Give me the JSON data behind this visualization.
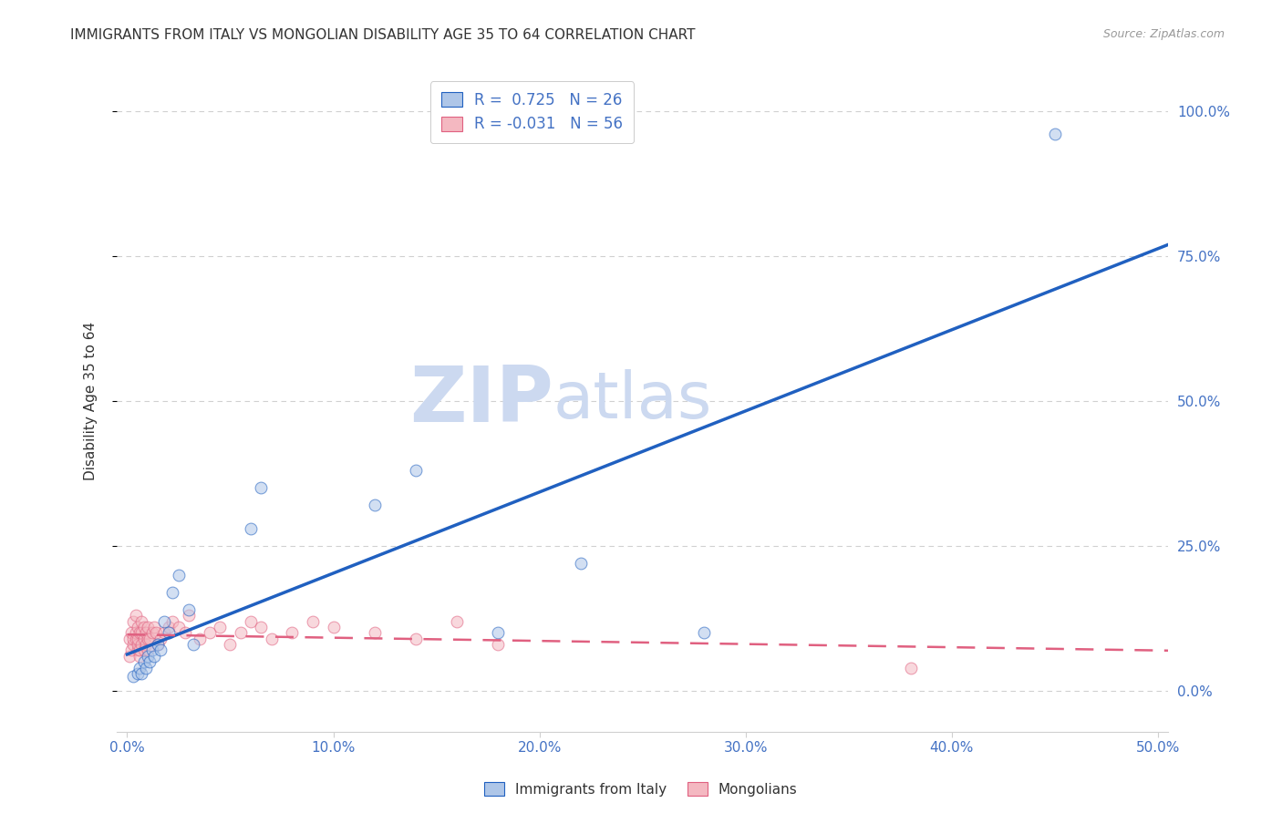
{
  "title": "IMMIGRANTS FROM ITALY VS MONGOLIAN DISABILITY AGE 35 TO 64 CORRELATION CHART",
  "source": "Source: ZipAtlas.com",
  "ylabel": "Disability Age 35 to 64",
  "xlabel_vals": [
    0.0,
    0.1,
    0.2,
    0.3,
    0.4,
    0.5
  ],
  "ylabel_vals": [
    0.0,
    0.25,
    0.5,
    0.75,
    1.0
  ],
  "xlim": [
    -0.005,
    0.505
  ],
  "ylim": [
    -0.07,
    1.07
  ],
  "legend1_label": "R =  0.725   N = 26",
  "legend2_label": "R = -0.031   N = 56",
  "legend1_color": "#aec6e8",
  "legend2_color": "#f4b8c1",
  "trendline1_color": "#2060c0",
  "trendline2_color": "#e06080",
  "watermark_zip": "ZIP",
  "watermark_atlas": "atlas",
  "watermark_color": "#ccd9f0",
  "italy_x": [
    0.003,
    0.005,
    0.006,
    0.007,
    0.008,
    0.009,
    0.01,
    0.011,
    0.012,
    0.013,
    0.015,
    0.016,
    0.018,
    0.02,
    0.022,
    0.025,
    0.03,
    0.032,
    0.06,
    0.065,
    0.12,
    0.14,
    0.18,
    0.22,
    0.28,
    0.45
  ],
  "italy_y": [
    0.025,
    0.03,
    0.04,
    0.03,
    0.05,
    0.04,
    0.06,
    0.05,
    0.07,
    0.06,
    0.08,
    0.07,
    0.12,
    0.1,
    0.17,
    0.2,
    0.14,
    0.08,
    0.28,
    0.35,
    0.32,
    0.38,
    0.1,
    0.22,
    0.1,
    0.96
  ],
  "mongol_x": [
    0.001,
    0.001,
    0.002,
    0.002,
    0.003,
    0.003,
    0.003,
    0.004,
    0.004,
    0.004,
    0.005,
    0.005,
    0.005,
    0.005,
    0.006,
    0.006,
    0.006,
    0.007,
    0.007,
    0.007,
    0.008,
    0.008,
    0.008,
    0.009,
    0.009,
    0.01,
    0.01,
    0.01,
    0.011,
    0.012,
    0.013,
    0.014,
    0.015,
    0.016,
    0.018,
    0.02,
    0.022,
    0.025,
    0.028,
    0.03,
    0.035,
    0.04,
    0.045,
    0.05,
    0.055,
    0.06,
    0.065,
    0.07,
    0.08,
    0.09,
    0.1,
    0.12,
    0.14,
    0.16,
    0.18,
    0.38
  ],
  "mongol_y": [
    0.06,
    0.09,
    0.07,
    0.1,
    0.08,
    0.09,
    0.12,
    0.09,
    0.1,
    0.13,
    0.07,
    0.08,
    0.09,
    0.11,
    0.06,
    0.07,
    0.1,
    0.08,
    0.1,
    0.12,
    0.07,
    0.09,
    0.11,
    0.08,
    0.1,
    0.07,
    0.09,
    0.11,
    0.09,
    0.1,
    0.11,
    0.1,
    0.08,
    0.09,
    0.1,
    0.11,
    0.12,
    0.11,
    0.1,
    0.13,
    0.09,
    0.1,
    0.11,
    0.08,
    0.1,
    0.12,
    0.11,
    0.09,
    0.1,
    0.12,
    0.11,
    0.1,
    0.09,
    0.12,
    0.08,
    0.04
  ],
  "background_color": "#ffffff",
  "grid_color": "#d0d0d0",
  "axis_color": "#4472c4",
  "title_color": "#333333",
  "ylabel_color": "#333333",
  "scatter_alpha": 0.55,
  "scatter_size": 85
}
